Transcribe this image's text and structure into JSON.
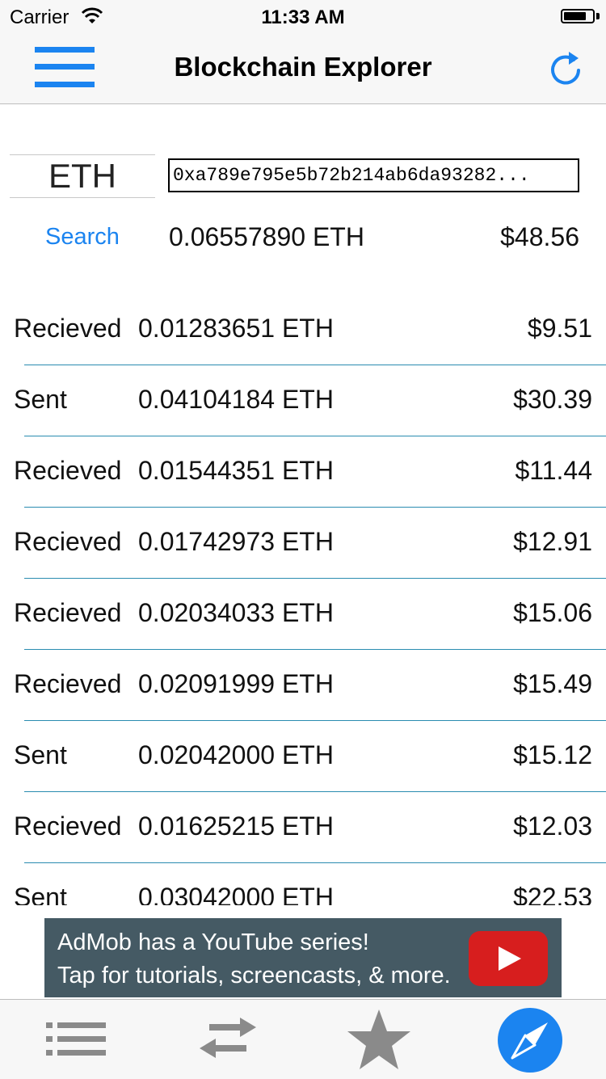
{
  "status_bar": {
    "carrier": "Carrier",
    "time": "11:33 AM",
    "battery_level": 0.8
  },
  "nav": {
    "title": "Blockchain Explorer",
    "menu_icon": "hamburger-menu-icon",
    "refresh_icon": "refresh-icon"
  },
  "search": {
    "currency": "ETH",
    "address": "0xa789e795e5b72b214ab6da93282...",
    "search_label": "Search",
    "balance_eth": "0.06557890 ETH",
    "balance_usd": "$48.56"
  },
  "transactions": [
    {
      "type": "Recieved",
      "amount": "0.01283651 ETH",
      "usd": "$9.51"
    },
    {
      "type": "Sent",
      "amount": "0.04104184 ETH",
      "usd": "$30.39"
    },
    {
      "type": "Recieved",
      "amount": "0.01544351 ETH",
      "usd": "$11.44"
    },
    {
      "type": "Recieved",
      "amount": "0.01742973 ETH",
      "usd": "$12.91"
    },
    {
      "type": "Recieved",
      "amount": "0.02034033 ETH",
      "usd": "$15.06"
    },
    {
      "type": "Recieved",
      "amount": "0.02091999 ETH",
      "usd": "$15.49"
    },
    {
      "type": "Sent",
      "amount": "0.02042000 ETH",
      "usd": "$15.12"
    },
    {
      "type": "Recieved",
      "amount": "0.01625215 ETH",
      "usd": "$12.03"
    },
    {
      "type": "Sent",
      "amount": "0.03042000 ETH",
      "usd": "$22.53"
    }
  ],
  "ad": {
    "line1": "AdMob has a YouTube series!",
    "line2": "Tap for tutorials, screencasts, & more.",
    "icon": "youtube-play-icon"
  },
  "tabs": [
    {
      "icon": "list-icon"
    },
    {
      "icon": "transfer-arrows-icon"
    },
    {
      "icon": "star-icon"
    },
    {
      "icon": "compass-icon",
      "active": true
    }
  ],
  "colors": {
    "accent": "#1b84f0",
    "separator": "#2a8cb0",
    "ad_background": "#455a64",
    "tab_inactive": "#8a8a8a"
  }
}
